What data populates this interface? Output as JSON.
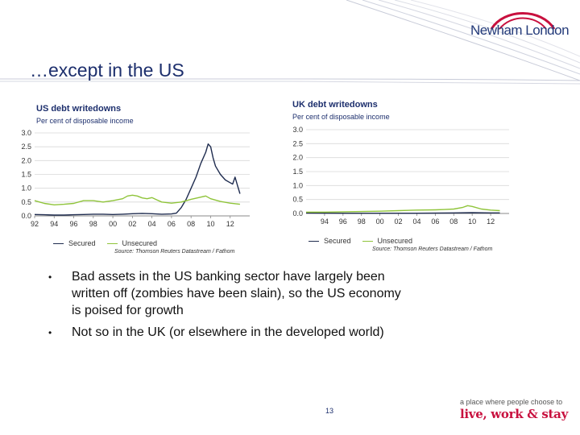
{
  "header": {
    "logo_text": "Newham London",
    "title": "…except in the US",
    "brand_color": "#243b7a"
  },
  "chart_data": [
    {
      "type": "line",
      "title": "US debt writedowns",
      "subtitle": "Per cent of disposable income",
      "ylim": [
        0,
        3.0
      ],
      "yticks": [
        0.0,
        0.5,
        1.0,
        1.5,
        2.0,
        2.5,
        3.0
      ],
      "ytick_labels": [
        "0.0",
        "0.5",
        "1.0",
        "1.5",
        "2.0",
        "2.5",
        "3.0"
      ],
      "xlim": [
        1992,
        2014
      ],
      "xticks": [
        1992,
        1994,
        1996,
        1998,
        2000,
        2002,
        2004,
        2006,
        2008,
        2010,
        2012
      ],
      "xtick_labels": [
        "92",
        "94",
        "96",
        "98",
        "00",
        "02",
        "04",
        "06",
        "08",
        "10",
        "12"
      ],
      "grid": true,
      "legend_placement": "bottom",
      "source": "Source: Thomson Reuters Datastream / Fathom",
      "series": [
        {
          "name": "Secured",
          "color": "#1f2c4f",
          "points": [
            [
              1992,
              0.05
            ],
            [
              1993,
              0.04
            ],
            [
              1994,
              0.03
            ],
            [
              1995,
              0.03
            ],
            [
              1996,
              0.04
            ],
            [
              1997,
              0.05
            ],
            [
              1998,
              0.06
            ],
            [
              1999,
              0.06
            ],
            [
              2000,
              0.05
            ],
            [
              2001,
              0.06
            ],
            [
              2002,
              0.08
            ],
            [
              2003,
              0.09
            ],
            [
              2004,
              0.08
            ],
            [
              2005,
              0.06
            ],
            [
              2006,
              0.07
            ],
            [
              2006.5,
              0.1
            ],
            [
              2007,
              0.3
            ],
            [
              2007.5,
              0.6
            ],
            [
              2008,
              1.0
            ],
            [
              2008.5,
              1.4
            ],
            [
              2009,
              1.9
            ],
            [
              2009.5,
              2.3
            ],
            [
              2009.75,
              2.6
            ],
            [
              2010,
              2.5
            ],
            [
              2010.25,
              2.1
            ],
            [
              2010.5,
              1.8
            ],
            [
              2011,
              1.5
            ],
            [
              2011.5,
              1.3
            ],
            [
              2012,
              1.2
            ],
            [
              2012.25,
              1.15
            ],
            [
              2012.5,
              1.4
            ],
            [
              2012.75,
              1.1
            ],
            [
              2013,
              0.8
            ]
          ]
        },
        {
          "name": "Unsecured",
          "color": "#8fc43a",
          "points": [
            [
              1992,
              0.55
            ],
            [
              1992.5,
              0.5
            ],
            [
              1993,
              0.45
            ],
            [
              1994,
              0.4
            ],
            [
              1995,
              0.42
            ],
            [
              1996,
              0.45
            ],
            [
              1997,
              0.55
            ],
            [
              1998,
              0.55
            ],
            [
              1999,
              0.5
            ],
            [
              2000,
              0.55
            ],
            [
              2001,
              0.62
            ],
            [
              2001.5,
              0.72
            ],
            [
              2002,
              0.75
            ],
            [
              2002.5,
              0.72
            ],
            [
              2003,
              0.65
            ],
            [
              2003.5,
              0.62
            ],
            [
              2004,
              0.66
            ],
            [
              2004.5,
              0.58
            ],
            [
              2005,
              0.5
            ],
            [
              2006,
              0.46
            ],
            [
              2007,
              0.5
            ],
            [
              2008,
              0.6
            ],
            [
              2009,
              0.68
            ],
            [
              2009.5,
              0.72
            ],
            [
              2010,
              0.62
            ],
            [
              2011,
              0.52
            ],
            [
              2012,
              0.46
            ],
            [
              2013,
              0.42
            ]
          ]
        }
      ]
    },
    {
      "type": "line",
      "title": "UK debt writedowns",
      "subtitle": "Per cent of disposable income",
      "ylim": [
        0,
        3.0
      ],
      "yticks": [
        0.0,
        0.5,
        1.0,
        1.5,
        2.0,
        2.5,
        3.0
      ],
      "ytick_labels": [
        "0.0",
        "0.5",
        "1.0",
        "1.5",
        "2.0",
        "2.5",
        "3.0"
      ],
      "xlim": [
        1992,
        2014
      ],
      "xticks": [
        1994,
        1996,
        1998,
        2000,
        2002,
        2004,
        2006,
        2008,
        2010,
        2012
      ],
      "xtick_labels": [
        "94",
        "96",
        "98",
        "00",
        "02",
        "04",
        "06",
        "08",
        "10",
        "12"
      ],
      "grid": true,
      "legend_placement": "bottom",
      "source": "Source: Thomson Reuters Datastream / Fathom",
      "series": [
        {
          "name": "Secured",
          "color": "#1f2c4f",
          "points": [
            [
              1992,
              0.02
            ],
            [
              1996,
              0.01
            ],
            [
              2000,
              0.01
            ],
            [
              2004,
              0.01
            ],
            [
              2008,
              0.02
            ],
            [
              2010,
              0.03
            ],
            [
              2012,
              0.02
            ],
            [
              2013,
              0.02
            ]
          ]
        },
        {
          "name": "Unsecured",
          "color": "#8fc43a",
          "points": [
            [
              1992,
              0.05
            ],
            [
              1994,
              0.05
            ],
            [
              1996,
              0.06
            ],
            [
              1998,
              0.07
            ],
            [
              2000,
              0.08
            ],
            [
              2002,
              0.1
            ],
            [
              2004,
              0.12
            ],
            [
              2006,
              0.13
            ],
            [
              2007,
              0.14
            ],
            [
              2008,
              0.16
            ],
            [
              2009,
              0.22
            ],
            [
              2009.5,
              0.28
            ],
            [
              2010,
              0.25
            ],
            [
              2011,
              0.16
            ],
            [
              2012,
              0.12
            ],
            [
              2013,
              0.1
            ]
          ]
        }
      ]
    }
  ],
  "legend_labels": {
    "secured": "Secured",
    "unsecured": "Unsecured"
  },
  "bullets": [
    "Bad assets in the US banking sector have largely been written off (zombies have been slain), so the US economy is poised for growth",
    "Not so in the UK (or elsewhere in the developed world)"
  ],
  "footer": {
    "page_number": "13",
    "tagline": "a place where people choose to",
    "tagline_brand": "live, work & stay",
    "tagline_brand_color": "#c8103e"
  }
}
